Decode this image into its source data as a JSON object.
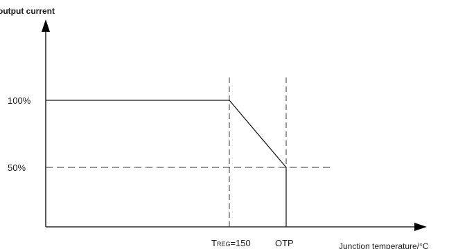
{
  "chart_data": {
    "type": "line",
    "ylabel": "output current",
    "xlabel": "Junction temperature/°C",
    "y_ticks": [
      {
        "label": "100%",
        "value": 100
      },
      {
        "label": "50%",
        "value": 50
      }
    ],
    "x_markers": {
      "treg": {
        "main": "T",
        "sub": "REG",
        "tail": "=150"
      },
      "otp": "OTP"
    },
    "series": [
      {
        "points": [
          {
            "x": "origin",
            "y": 100
          },
          {
            "x": "TREG=150",
            "y": 100
          },
          {
            "x": "OTP",
            "y": 50
          },
          {
            "x": "OTP",
            "y": 0
          }
        ]
      }
    ],
    "guides": {
      "dashed_vertical_at": [
        "TREG=150",
        "OTP"
      ],
      "dashed_horizontal_at": 50
    }
  },
  "colors": {
    "line": "#1a1a1a",
    "axis": "#000000",
    "background": "#ffffff"
  }
}
